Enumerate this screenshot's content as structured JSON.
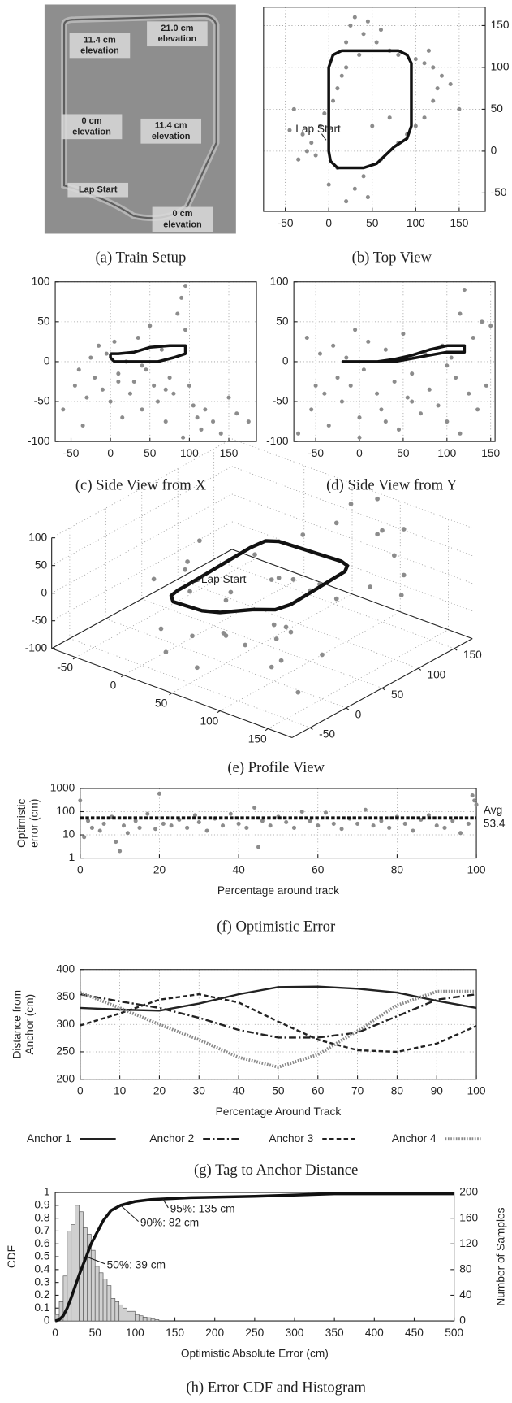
{
  "photo": {
    "caption": "(a) Train Setup",
    "labels": [
      [
        "11.4 cm",
        "elevation"
      ],
      [
        "21.0 cm",
        "elevation"
      ],
      [
        "0 cm",
        "elevation"
      ],
      [
        "11.4 cm",
        "elevation"
      ],
      [
        "Lap Start"
      ],
      [
        "0 cm",
        "elevation"
      ]
    ]
  },
  "chart_data": [
    {
      "type": "scatter",
      "caption": "(b) Top View",
      "annotation": "Lap Start",
      "xlim": [
        -75,
        180
      ],
      "ylim": [
        -72,
        172
      ],
      "xticks": [
        -50,
        0,
        50,
        100,
        150
      ],
      "yticks": [
        -50,
        0,
        50,
        100,
        150
      ],
      "ytick_side": "right",
      "grid": true,
      "series": [
        {
          "style": "points",
          "color": "#8c8c8c",
          "x": [
            -30,
            -20,
            -15,
            -10,
            -5,
            -25,
            -35,
            5,
            10,
            15,
            20,
            25,
            30,
            40,
            45,
            55,
            60,
            70,
            80,
            100,
            110,
            120,
            130,
            140,
            150,
            120,
            110,
            100,
            90,
            80,
            60,
            40,
            30,
            20,
            45,
            10,
            0,
            50,
            70,
            -40,
            -45,
            115,
            125,
            35,
            20
          ],
          "values": [
            20,
            10,
            -5,
            30,
            45,
            0,
            -10,
            60,
            75,
            90,
            130,
            150,
            160,
            140,
            155,
            130,
            145,
            120,
            115,
            110,
            105,
            100,
            90,
            80,
            50,
            60,
            40,
            30,
            20,
            10,
            -10,
            -30,
            -45,
            -60,
            -55,
            -20,
            -40,
            30,
            40,
            50,
            25,
            120,
            75,
            115,
            100
          ]
        },
        {
          "style": "line",
          "color": "#111111",
          "x": [
            0,
            0,
            5,
            15,
            80,
            90,
            95,
            95,
            90,
            75,
            55,
            40,
            10,
            2,
            0,
            0
          ],
          "values": [
            10,
            100,
            115,
            120,
            120,
            115,
            105,
            30,
            15,
            5,
            -15,
            -20,
            -20,
            -12,
            0,
            10
          ]
        }
      ]
    },
    {
      "type": "scatter",
      "caption": "(c) Side View from X",
      "xlim": [
        -70,
        185
      ],
      "ylim": [
        -100,
        100
      ],
      "xticks": [
        -50,
        0,
        50,
        100,
        150
      ],
      "yticks": [
        -100,
        -50,
        0,
        50,
        100
      ],
      "ytick_side": "left",
      "grid": true,
      "series": [
        {
          "style": "points",
          "color": "#8c8c8c",
          "x": [
            -60,
            -45,
            -40,
            -30,
            -25,
            -20,
            -15,
            -10,
            -5,
            0,
            5,
            10,
            15,
            20,
            25,
            30,
            35,
            40,
            45,
            50,
            55,
            60,
            65,
            70,
            75,
            80,
            85,
            90,
            95,
            100,
            105,
            110,
            115,
            120,
            130,
            140,
            150,
            160,
            175,
            -35,
            10,
            40,
            70,
            95,
            92
          ],
          "values": [
            -60,
            -30,
            -10,
            -45,
            5,
            -20,
            20,
            -35,
            10,
            -50,
            25,
            -15,
            -70,
            0,
            -40,
            -25,
            30,
            -60,
            -10,
            45,
            -30,
            -50,
            15,
            -75,
            -20,
            -40,
            60,
            80,
            95,
            -30,
            -55,
            -70,
            -85,
            -60,
            -75,
            -90,
            -45,
            -65,
            -75,
            -80,
            -25,
            -5,
            -35,
            40,
            -95
          ]
        },
        {
          "style": "line",
          "color": "#111111",
          "x": [
            0,
            10,
            30,
            50,
            75,
            95,
            95,
            80,
            60,
            40,
            20,
            5,
            0,
            0
          ],
          "values": [
            10,
            10,
            12,
            18,
            20,
            20,
            10,
            5,
            0,
            0,
            0,
            0,
            5,
            10
          ]
        }
      ]
    },
    {
      "type": "scatter",
      "caption": "(d) Side View from Y",
      "xlim": [
        -75,
        155
      ],
      "ylim": [
        -100,
        100
      ],
      "xticks": [
        -50,
        0,
        50,
        100,
        150
      ],
      "yticks": [
        -100,
        -50,
        0,
        50,
        100
      ],
      "ytick_side": "left",
      "grid": true,
      "series": [
        {
          "style": "points",
          "color": "#8c8c8c",
          "x": [
            -70,
            -60,
            -55,
            -45,
            -40,
            -35,
            -30,
            -25,
            -20,
            -15,
            -10,
            -5,
            0,
            5,
            10,
            20,
            25,
            30,
            40,
            45,
            50,
            55,
            60,
            70,
            75,
            80,
            90,
            95,
            100,
            105,
            110,
            115,
            120,
            125,
            130,
            135,
            140,
            145,
            150,
            0,
            60,
            100,
            -50,
            30,
            115
          ],
          "values": [
            -90,
            30,
            -60,
            10,
            -40,
            -80,
            20,
            -20,
            -50,
            5,
            -30,
            40,
            -70,
            -10,
            25,
            -40,
            -60,
            15,
            -25,
            -85,
            35,
            -45,
            -15,
            -65,
            10,
            -35,
            -55,
            20,
            -75,
            5,
            -20,
            60,
            90,
            -40,
            30,
            -60,
            50,
            -30,
            45,
            -95,
            -50,
            -5,
            -30,
            -75,
            -90
          ]
        },
        {
          "style": "line",
          "color": "#111111",
          "x": [
            -20,
            0,
            20,
            40,
            60,
            80,
            100,
            120,
            120,
            100,
            80,
            60,
            40,
            20,
            -20
          ],
          "values": [
            0,
            0,
            0,
            3,
            8,
            15,
            20,
            20,
            12,
            12,
            8,
            4,
            0,
            0,
            0
          ]
        }
      ]
    },
    {
      "type": "scatter3d",
      "caption": "(e) Profile View",
      "annotation": "Lap Start",
      "xlim": [
        -75,
        175
      ],
      "ylim": [
        -75,
        175
      ],
      "zlim": [
        -100,
        100
      ],
      "xticks": [
        -50,
        0,
        50,
        100,
        150
      ],
      "yticks": [
        -50,
        0,
        50,
        100,
        150
      ],
      "zticks": [
        -100,
        -50,
        0,
        50,
        100
      ],
      "grid": true,
      "series": [
        {
          "style": "points",
          "color": "#8c8c8c",
          "x": [
            -40,
            -20,
            0,
            10,
            20,
            30,
            40,
            50,
            60,
            70,
            80,
            90,
            100,
            110,
            120,
            130,
            140,
            150,
            -30,
            15,
            35,
            55,
            75,
            95,
            115,
            135,
            5,
            25,
            45,
            65,
            85,
            105,
            125,
            145,
            60,
            80,
            100,
            120,
            -10,
            50
          ],
          "y": [
            20,
            40,
            10,
            60,
            80,
            100,
            120,
            130,
            140,
            90,
            50,
            30,
            10,
            -10,
            -30,
            -40,
            -20,
            0,
            70,
            110,
            20,
            -10,
            60,
            150,
            160,
            130,
            -30,
            -50,
            -40,
            -60,
            -20,
            80,
            100,
            120,
            160,
            170,
            150,
            140,
            30,
            0
          ],
          "z": [
            -20,
            10,
            30,
            -40,
            20,
            -30,
            40,
            -50,
            60,
            -20,
            -60,
            -30,
            -70,
            -10,
            -40,
            50,
            -80,
            -20,
            20,
            -50,
            -10,
            -35,
            25,
            55,
            70,
            -15,
            -45,
            -60,
            -25,
            -55,
            -30,
            -5,
            15,
            35,
            80,
            95,
            65,
            40,
            -30,
            -50
          ]
        },
        {
          "style": "line",
          "color": "#111111",
          "x": [
            0,
            0,
            5,
            15,
            80,
            90,
            95,
            95,
            90,
            75,
            55,
            40,
            10,
            2,
            0,
            0
          ],
          "y": [
            10,
            100,
            115,
            120,
            120,
            115,
            105,
            30,
            15,
            5,
            -15,
            -20,
            -20,
            -12,
            0,
            10
          ],
          "z": [
            0,
            5,
            10,
            12,
            18,
            20,
            20,
            14,
            12,
            10,
            6,
            3,
            0,
            0,
            0,
            0
          ]
        }
      ]
    },
    {
      "type": "scatter",
      "caption": "(f) Optimistic Error",
      "xlabel": "Percentage around track",
      "ylabel": [
        "Optimistic",
        "error (cm)"
      ],
      "xlim": [
        0,
        100
      ],
      "ylim": [
        1,
        1000
      ],
      "yscale": "log",
      "xticks": [
        0,
        20,
        40,
        60,
        80,
        100
      ],
      "yticks": [
        1,
        10,
        100,
        1000
      ],
      "ytick_side": "left",
      "grid": true,
      "avg_label": "Avg",
      "avg": 53.4,
      "series": [
        {
          "style": "points",
          "color": "#8c8c8c",
          "x": [
            0,
            1,
            2,
            3,
            5,
            6,
            8,
            9,
            10,
            11,
            12,
            14,
            15,
            17,
            19,
            20,
            21,
            23,
            25,
            27,
            29,
            30,
            32,
            34,
            36,
            38,
            40,
            42,
            44,
            45,
            46,
            48,
            50,
            52,
            54,
            56,
            58,
            60,
            62,
            64,
            66,
            68,
            70,
            72,
            74,
            76,
            78,
            80,
            82,
            84,
            86,
            88,
            90,
            92,
            94,
            96,
            98,
            99,
            100,
            99.5
          ],
          "values": [
            300,
            8,
            40,
            20,
            15,
            30,
            60,
            5,
            2,
            25,
            12,
            40,
            20,
            80,
            18,
            600,
            30,
            25,
            45,
            20,
            70,
            35,
            15,
            50,
            25,
            80,
            30,
            20,
            150,
            3,
            40,
            25,
            60,
            35,
            20,
            100,
            40,
            25,
            90,
            30,
            18,
            50,
            30,
            120,
            25,
            40,
            20,
            60,
            30,
            15,
            45,
            70,
            25,
            20,
            40,
            12,
            30,
            500,
            200,
            300
          ]
        }
      ]
    },
    {
      "type": "line",
      "caption": "(g) Tag to Anchor Distance",
      "xlabel": "Percentage Around Track",
      "ylabel": [
        "Distance from",
        "Anchor (cm)"
      ],
      "xlim": [
        0,
        100
      ],
      "ylim": [
        200,
        400
      ],
      "xticks": [
        0,
        10,
        20,
        30,
        40,
        50,
        60,
        70,
        80,
        90,
        100
      ],
      "yticks": [
        200,
        250,
        300,
        350,
        400
      ],
      "ytick_side": "left",
      "grid": true,
      "legend": "bottom",
      "x": [
        0,
        10,
        20,
        30,
        40,
        50,
        60,
        70,
        80,
        90,
        100
      ],
      "series": [
        {
          "name": "Anchor 1",
          "color": "#222222",
          "dash": "solid",
          "values": [
            330,
            327,
            325,
            338,
            355,
            368,
            369,
            365,
            358,
            343,
            330
          ]
        },
        {
          "name": "Anchor 2",
          "color": "#222222",
          "dash": "dashdot",
          "values": [
            355,
            342,
            330,
            312,
            290,
            276,
            276,
            285,
            315,
            345,
            355
          ]
        },
        {
          "name": "Anchor 3",
          "color": "#222222",
          "dash": "dashed",
          "values": [
            298,
            320,
            345,
            355,
            340,
            305,
            272,
            253,
            250,
            265,
            297
          ]
        },
        {
          "name": "Anchor 4",
          "color": "#888888",
          "dash": "dotted",
          "values": [
            358,
            330,
            300,
            272,
            240,
            222,
            245,
            288,
            335,
            360,
            360
          ]
        }
      ]
    },
    {
      "type": "histogram",
      "caption": "(h) Error CDF and Histogram",
      "xlabel": "Optimistic Absolute Error (cm)",
      "ylabel": "CDF",
      "y2label": "Number of Samples",
      "xlim": [
        0,
        500
      ],
      "ylim": [
        0,
        1
      ],
      "y2lim": [
        0,
        200
      ],
      "xticks": [
        0,
        50,
        100,
        150,
        200,
        250,
        300,
        350,
        400,
        450,
        500
      ],
      "yticks": [
        0,
        0.1,
        0.2,
        0.3,
        0.4,
        0.5,
        0.6,
        0.7,
        0.8,
        0.9,
        1
      ],
      "y2ticks": [
        0,
        40,
        80,
        120,
        160,
        200
      ],
      "ytick_side": "left",
      "grid": false,
      "series": [
        {
          "style": "bar",
          "axis": "y2",
          "color": "#d0d0d0",
          "bins": [
            0,
            5,
            10,
            15,
            20,
            25,
            30,
            35,
            40,
            45,
            50,
            55,
            60,
            65,
            70,
            75,
            80,
            85,
            90,
            95,
            100,
            105,
            110,
            115,
            120,
            125,
            130
          ],
          "values": [
            10,
            30,
            70,
            140,
            150,
            180,
            170,
            145,
            135,
            110,
            85,
            75,
            65,
            55,
            35,
            30,
            25,
            20,
            15,
            15,
            10,
            8,
            6,
            5,
            3,
            2
          ]
        },
        {
          "style": "line",
          "color": "#111111",
          "x": [
            0,
            5,
            10,
            15,
            20,
            25,
            30,
            35,
            39,
            45,
            50,
            60,
            70,
            82,
            100,
            120,
            135,
            170,
            250,
            350,
            500
          ],
          "values": [
            0,
            0.01,
            0.04,
            0.1,
            0.18,
            0.27,
            0.36,
            0.44,
            0.5,
            0.6,
            0.66,
            0.78,
            0.86,
            0.9,
            0.93,
            0.945,
            0.95,
            0.96,
            0.97,
            0.99,
            0.99
          ]
        }
      ],
      "annotations": [
        {
          "text": "95%: 135 cm",
          "x": 135,
          "y": 0.95
        },
        {
          "text": "90%: 82 cm",
          "x": 82,
          "y": 0.9
        },
        {
          "text": "50%: 39 cm",
          "x": 39,
          "y": 0.5
        }
      ]
    }
  ]
}
